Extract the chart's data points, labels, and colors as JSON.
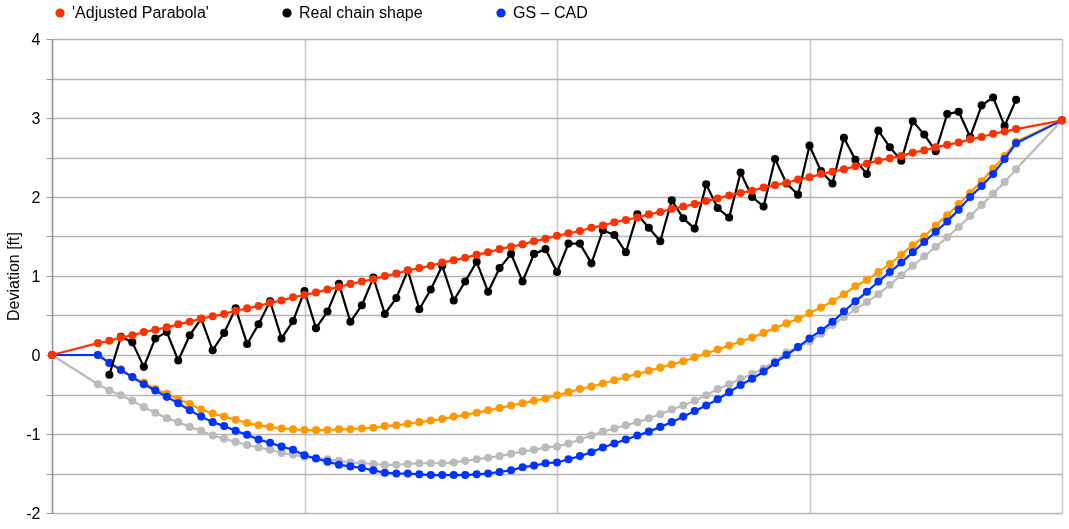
{
  "chart_data": {
    "type": "line",
    "ylabel": "Deviation [ft]",
    "categories": [
      null,
      null,
      null,
      null,
      null,
      null,
      null,
      null,
      null,
      null,
      null,
      null,
      null,
      null,
      null,
      null,
      null,
      null,
      null,
      null,
      null,
      null,
      null,
      null,
      null,
      null,
      null,
      null,
      null,
      null,
      null,
      null,
      null,
      null,
      null,
      null,
      null,
      null,
      null,
      null,
      null,
      null,
      null,
      null,
      null,
      null,
      null,
      null,
      null,
      null,
      null,
      null,
      null,
      null,
      null,
      null,
      null,
      null,
      null,
      null,
      null,
      null,
      null,
      null,
      null,
      null,
      null,
      null,
      null,
      null,
      null,
      null,
      null,
      null,
      null,
      null,
      null,
      null,
      null,
      null,
      null,
      null,
      null,
      null,
      null,
      null,
      null,
      null,
      null
    ],
    "ylim": [
      -2,
      4
    ],
    "yticks": [
      -2,
      {
        "value": -1.5,
        "label": null
      },
      -1,
      {
        "value": -0.5,
        "label": null
      },
      0,
      {
        "value": 0.5,
        "label": null
      },
      1,
      {
        "value": 1.5,
        "label": null
      },
      2,
      {
        "value": 2.5,
        "label": null
      },
      3,
      {
        "value": 3.5,
        "label": null
      },
      4
    ],
    "grid": true,
    "legend": "top",
    "tick_labels": "y",
    "marker": "circle",
    "line_style": "solid",
    "series": [
      {
        "name": "'Adjusted Parabola'",
        "color": "#ff3300",
        "values": [
          0,
          null,
          null,
          null,
          0.15,
          0.18,
          0.22,
          0.25,
          0.29,
          0.32,
          0.35,
          0.39,
          0.42,
          0.46,
          0.49,
          0.52,
          0.56,
          0.59,
          0.62,
          0.66,
          0.69,
          0.73,
          0.76,
          0.79,
          0.83,
          0.86,
          0.9,
          0.93,
          0.96,
          1.0,
          1.03,
          1.07,
          1.1,
          1.13,
          1.17,
          1.2,
          1.23,
          1.27,
          1.3,
          1.34,
          1.37,
          1.4,
          1.44,
          1.47,
          1.51,
          1.54,
          1.57,
          1.61,
          1.64,
          1.68,
          1.71,
          1.74,
          1.78,
          1.81,
          1.85,
          1.88,
          1.91,
          1.95,
          1.98,
          2.02,
          2.05,
          2.08,
          2.12,
          2.15,
          2.18,
          2.22,
          2.25,
          2.29,
          2.32,
          2.35,
          2.39,
          2.42,
          2.46,
          2.49,
          2.52,
          2.56,
          2.59,
          2.63,
          2.66,
          2.69,
          2.73,
          2.76,
          2.8,
          2.83,
          2.86,
          null,
          null,
          null,
          2.97
        ]
      },
      {
        "name": "Real chain shape",
        "color": "#000000",
        "values": [
          null,
          null,
          null,
          null,
          null,
          -0.25,
          0.23,
          0.16,
          -0.15,
          0.21,
          0.29,
          -0.07,
          0.25,
          0.46,
          0.06,
          0.28,
          0.59,
          0.14,
          0.39,
          0.68,
          0.21,
          0.43,
          0.81,
          0.34,
          0.55,
          0.9,
          0.42,
          0.63,
          0.98,
          0.52,
          0.72,
          1.07,
          0.58,
          0.83,
          1.13,
          0.69,
          0.93,
          1.18,
          0.8,
          1.1,
          1.28,
          0.93,
          1.28,
          1.34,
          1.05,
          1.41,
          1.41,
          1.16,
          1.58,
          1.52,
          1.3,
          1.78,
          1.61,
          1.44,
          1.96,
          1.73,
          1.6,
          2.16,
          1.86,
          1.74,
          2.31,
          2.0,
          1.88,
          2.48,
          2.17,
          2.03,
          2.65,
          2.33,
          2.17,
          2.75,
          2.47,
          2.29,
          2.84,
          2.63,
          2.46,
          2.96,
          2.79,
          2.58,
          3.05,
          3.08,
          2.76,
          3.16,
          3.26,
          2.9,
          3.23,
          null,
          null,
          null,
          null
        ]
      },
      {
        "name": "GS – CAD",
        "color": "#0033ff",
        "values": [
          0,
          null,
          null,
          null,
          0,
          -0.1,
          -0.19,
          -0.28,
          -0.37,
          -0.45,
          -0.53,
          -0.61,
          -0.7,
          -0.78,
          -0.85,
          -0.9,
          -0.96,
          -1.01,
          -1.07,
          -1.11,
          -1.16,
          -1.2,
          -1.27,
          -1.31,
          -1.35,
          -1.39,
          -1.41,
          -1.43,
          -1.46,
          -1.49,
          -1.5,
          -1.5,
          -1.51,
          -1.52,
          -1.52,
          -1.52,
          -1.52,
          -1.51,
          -1.5,
          -1.48,
          -1.46,
          -1.42,
          -1.4,
          -1.37,
          -1.36,
          -1.32,
          -1.28,
          -1.23,
          -1.17,
          -1.12,
          -1.07,
          -1.02,
          -0.97,
          -0.91,
          -0.85,
          -0.78,
          -0.71,
          -0.64,
          -0.56,
          -0.47,
          -0.38,
          -0.3,
          -0.21,
          -0.1,
          0.0,
          0.1,
          0.21,
          0.31,
          0.42,
          0.55,
          0.68,
          0.8,
          0.93,
          1.05,
          1.17,
          1.3,
          1.43,
          1.56,
          1.69,
          1.84,
          2.0,
          2.14,
          2.29,
          2.48,
          2.68,
          null,
          null,
          null,
          2.97
        ]
      },
      {
        "color": "#bbbbbb",
        "values": [
          0,
          null,
          null,
          null,
          -0.37,
          -0.45,
          -0.51,
          -0.58,
          -0.66,
          -0.73,
          -0.8,
          -0.85,
          -0.91,
          -0.96,
          -1.02,
          -1.06,
          -1.1,
          -1.14,
          -1.17,
          -1.2,
          -1.24,
          -1.26,
          -1.29,
          -1.3,
          -1.32,
          -1.34,
          -1.36,
          -1.37,
          -1.38,
          -1.39,
          -1.39,
          -1.38,
          -1.37,
          -1.37,
          -1.37,
          -1.36,
          -1.34,
          -1.32,
          -1.3,
          -1.28,
          -1.25,
          -1.22,
          -1.2,
          -1.17,
          -1.16,
          -1.12,
          -1.07,
          -1.02,
          -0.97,
          -0.93,
          -0.89,
          -0.85,
          -0.8,
          -0.75,
          -0.69,
          -0.64,
          -0.58,
          -0.51,
          -0.43,
          -0.37,
          -0.3,
          -0.24,
          -0.17,
          -0.08,
          0.03,
          0.1,
          0.17,
          0.27,
          0.38,
          0.48,
          0.58,
          0.67,
          0.77,
          0.89,
          1.01,
          1.13,
          1.25,
          1.37,
          1.49,
          1.62,
          1.76,
          1.9,
          2.04,
          2.19,
          2.35,
          null,
          null,
          null,
          2.97
        ]
      },
      {
        "color": "#ff9900",
        "values": [
          0,
          null,
          null,
          null,
          0,
          -0.1,
          -0.18,
          -0.28,
          -0.35,
          -0.43,
          -0.49,
          -0.56,
          -0.62,
          -0.69,
          -0.74,
          -0.78,
          -0.82,
          -0.86,
          -0.89,
          -0.91,
          -0.93,
          -0.94,
          -0.95,
          -0.95,
          -0.95,
          -0.94,
          -0.94,
          -0.93,
          -0.92,
          -0.9,
          -0.89,
          -0.87,
          -0.85,
          -0.83,
          -0.81,
          -0.78,
          -0.76,
          -0.73,
          -0.7,
          -0.67,
          -0.64,
          -0.61,
          -0.58,
          -0.55,
          -0.51,
          -0.47,
          -0.43,
          -0.4,
          -0.36,
          -0.32,
          -0.28,
          -0.24,
          -0.2,
          -0.16,
          -0.12,
          -0.08,
          -0.03,
          0.02,
          0.07,
          0.12,
          0.17,
          0.22,
          0.28,
          0.34,
          0.4,
          0.46,
          0.53,
          0.6,
          0.68,
          0.77,
          0.87,
          0.95,
          1.05,
          1.15,
          1.27,
          1.39,
          1.5,
          1.64,
          1.77,
          1.91,
          2.05,
          2.2,
          2.36,
          2.52,
          2.7,
          null,
          null,
          null,
          2.97
        ]
      }
    ]
  }
}
